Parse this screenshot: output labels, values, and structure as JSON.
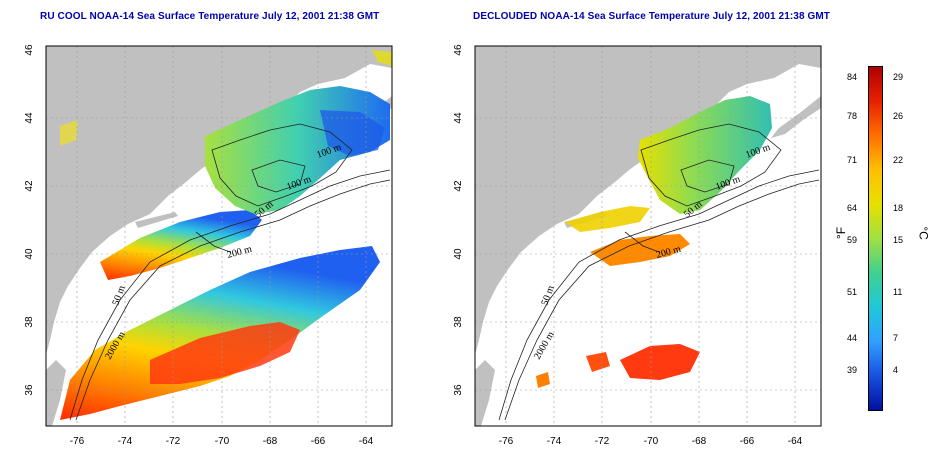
{
  "panels": [
    {
      "title": "RU COOL NOAA-14 Sea Surface Temperature July 12, 2001 21:38 GMT",
      "y_ticks": [
        "46",
        "44",
        "42",
        "40",
        "38",
        "36"
      ],
      "x_ticks": [
        "-76",
        "-74",
        "-72",
        "-70",
        "-68",
        "-66",
        "-64"
      ],
      "contour_labels": [
        "100 m",
        "100 m",
        "50 m",
        "200 m",
        "50 m",
        "2000 m"
      ]
    },
    {
      "title": "DECLOUDED NOAA-14 Sea Surface Temperature July 12, 2001 21:38 GMT",
      "y_ticks": [
        "46",
        "44",
        "42",
        "40",
        "38",
        "36"
      ],
      "x_ticks": [
        "-76",
        "-74",
        "-72",
        "-70",
        "-68",
        "-66",
        "-64"
      ],
      "contour_labels": [
        "100 m",
        "100 m",
        "50 m",
        "200 m",
        "50 m",
        "2000 m"
      ]
    }
  ],
  "colorbar": {
    "fahrenheit_ticks": [
      "84",
      "78",
      "71",
      "64",
      "59",
      "51",
      "44",
      "39"
    ],
    "celsius_ticks": [
      "29",
      "26",
      "22",
      "18",
      "15",
      "11",
      "7",
      "4"
    ],
    "fahrenheit_unit": "°F",
    "celsius_unit": "°C",
    "gradient_colors": [
      "#b00000",
      "#e82000",
      "#ff7000",
      "#ffc000",
      "#e8e000",
      "#a0e040",
      "#40d090",
      "#20c8d8",
      "#30a0ff",
      "#1850e0",
      "#0010a0"
    ]
  },
  "map": {
    "land_color": "#c0c0c0",
    "ocean_color": "#ffffff",
    "grid_color": "#9a9a9a"
  }
}
